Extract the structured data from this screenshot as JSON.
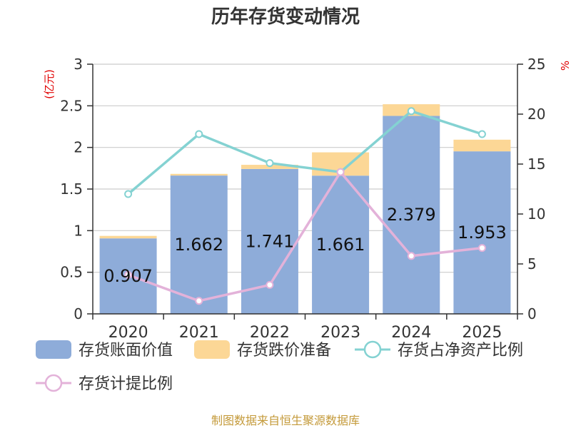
{
  "chart_data": {
    "type": "bar",
    "title": "历年存货变动情况",
    "y_left_unit": "(亿元)",
    "y_right_unit": "%",
    "categories": [
      "2020",
      "2021",
      "2022",
      "2023",
      "2024",
      "2025"
    ],
    "ylim_left": [
      0,
      3
    ],
    "ylim_right": [
      0,
      25
    ],
    "yticks_left": [
      "0",
      "0.5",
      "1",
      "1.5",
      "2",
      "2.5",
      "3"
    ],
    "yticks_right": [
      "0",
      "5",
      "10",
      "15",
      "20",
      "25"
    ],
    "grid": true,
    "legend_position": "bottom",
    "series": [
      {
        "name": "存货账面价值",
        "kind": "bar",
        "axis": "left",
        "stack": "a",
        "color": "#8eacd9",
        "values": [
          0.907,
          1.662,
          1.741,
          1.661,
          2.379,
          1.953
        ],
        "labels": [
          "0.907",
          "1.662",
          "1.741",
          "1.661",
          "2.379",
          "1.953"
        ]
      },
      {
        "name": "存货跌价准备",
        "kind": "bar",
        "axis": "left",
        "stack": "a",
        "color": "#fcd796",
        "values": [
          0.03,
          0.02,
          0.05,
          0.28,
          0.14,
          0.14
        ]
      },
      {
        "name": "存货占净资产比例",
        "kind": "line",
        "axis": "right",
        "color": "#84d2d2",
        "values": [
          12.0,
          18.0,
          15.1,
          14.2,
          20.3,
          18.0
        ]
      },
      {
        "name": "存货计提比例",
        "kind": "line",
        "axis": "right",
        "color": "#e3b2d9",
        "values": [
          3.9,
          1.3,
          2.9,
          14.2,
          5.8,
          6.6
        ]
      }
    ],
    "source": "制图数据来自恒生聚源数据库"
  }
}
